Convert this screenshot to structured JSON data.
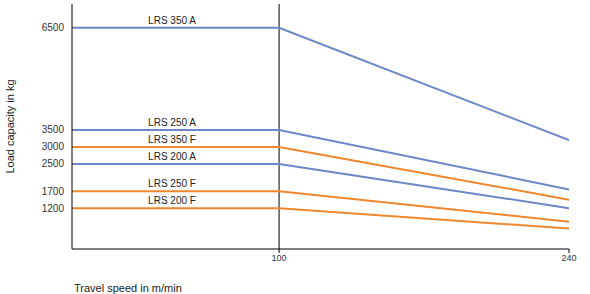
{
  "chart_data": {
    "type": "line",
    "x_label": "Travel speed in m/min",
    "y_label": "Load capacity in kg",
    "x": [
      0,
      100,
      240
    ],
    "xlim": [
      0,
      240
    ],
    "xticks": [
      100,
      240
    ],
    "ylim": [
      0,
      7200
    ],
    "yticks": [
      1200,
      1700,
      2500,
      3000,
      3500,
      6500
    ],
    "series": [
      {
        "name": "LRS 350 A",
        "color": "#6b87c7",
        "values": [
          6500,
          6500,
          3200
        ]
      },
      {
        "name": "LRS 250 A",
        "color": "#6b87c7",
        "values": [
          3500,
          3500,
          1750
        ]
      },
      {
        "name": "LRS 350 F",
        "color": "#f0862e",
        "values": [
          3000,
          3000,
          1450
        ]
      },
      {
        "name": "LRS 200 A",
        "color": "#6b87c7",
        "values": [
          2500,
          2500,
          1200
        ]
      },
      {
        "name": "LRS 250 F",
        "color": "#f0862e",
        "values": [
          1700,
          1700,
          800
        ]
      },
      {
        "name": "LRS 200 F",
        "color": "#f0862e",
        "values": [
          1200,
          1200,
          600
        ]
      }
    ]
  }
}
